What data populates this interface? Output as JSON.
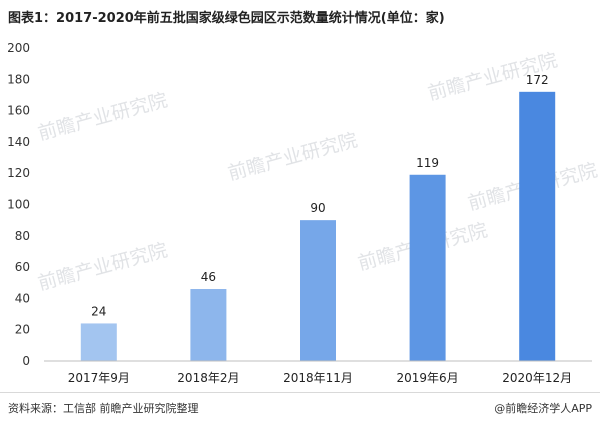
{
  "title": "图表1：2017-2020年前五批国家级绿色园区示范数量统计情况(单位：家)",
  "footer": {
    "source": "资料来源：工信部 前瞻产业研究院整理",
    "brand": "@前瞻经济学人APP"
  },
  "watermark_text": "前瞻产业研究院",
  "chart_data": {
    "type": "bar",
    "categories": [
      "2017年9月",
      "2018年2月",
      "2018年11月",
      "2019年6月",
      "2020年12月"
    ],
    "values": [
      24,
      46,
      90,
      119,
      172
    ],
    "ylim": [
      0,
      200
    ],
    "yticks": [
      0,
      20,
      40,
      60,
      80,
      100,
      120,
      140,
      160,
      180,
      200
    ],
    "grid": false,
    "bar_colors": [
      "#a3c5f0",
      "#8db6ec",
      "#76a7e9",
      "#5d96e4",
      "#4a88e0"
    ]
  }
}
